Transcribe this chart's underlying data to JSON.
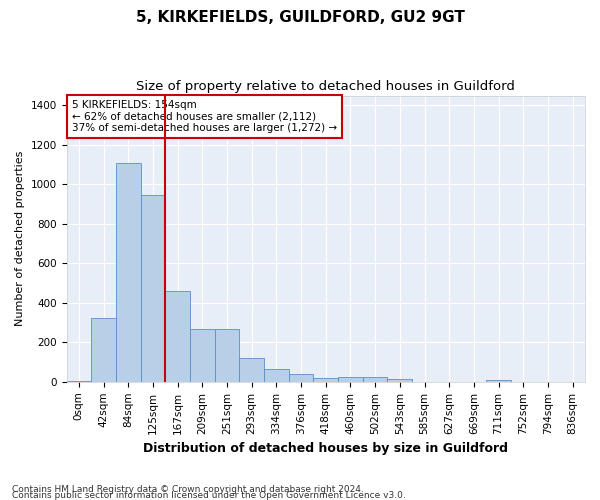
{
  "title": "5, KIRKEFIELDS, GUILDFORD, GU2 9GT",
  "subtitle": "Size of property relative to detached houses in Guildford",
  "xlabel": "Distribution of detached houses by size in Guildford",
  "ylabel": "Number of detached properties",
  "footnote1": "Contains HM Land Registry data © Crown copyright and database right 2024.",
  "footnote2": "Contains public sector information licensed under the Open Government Licence v3.0.",
  "bar_labels": [
    "0sqm",
    "42sqm",
    "84sqm",
    "125sqm",
    "167sqm",
    "209sqm",
    "251sqm",
    "293sqm",
    "334sqm",
    "376sqm",
    "418sqm",
    "460sqm",
    "502sqm",
    "543sqm",
    "585sqm",
    "627sqm",
    "669sqm",
    "711sqm",
    "752sqm",
    "794sqm",
    "836sqm"
  ],
  "bar_values": [
    5,
    325,
    1110,
    945,
    460,
    270,
    270,
    120,
    65,
    40,
    20,
    25,
    25,
    15,
    0,
    0,
    0,
    10,
    0,
    0,
    0
  ],
  "bar_color": "#b8cfe8",
  "bar_edge_color": "#5b8ec4",
  "vline_x": 3.5,
  "vline_color": "#cc0000",
  "annotation_text": "5 KIRKEFIELDS: 154sqm\n← 62% of detached houses are smaller (2,112)\n37% of semi-detached houses are larger (1,272) →",
  "ylim": [
    0,
    1450
  ],
  "yticks": [
    0,
    200,
    400,
    600,
    800,
    1000,
    1200,
    1400
  ],
  "bg_color": "#e8eef7",
  "grid_color": "#ffffff",
  "title_fontsize": 11,
  "subtitle_fontsize": 9.5,
  "xlabel_fontsize": 9,
  "ylabel_fontsize": 8,
  "tick_fontsize": 7.5,
  "annotation_fontsize": 7.5,
  "footnote_fontsize": 6.5
}
